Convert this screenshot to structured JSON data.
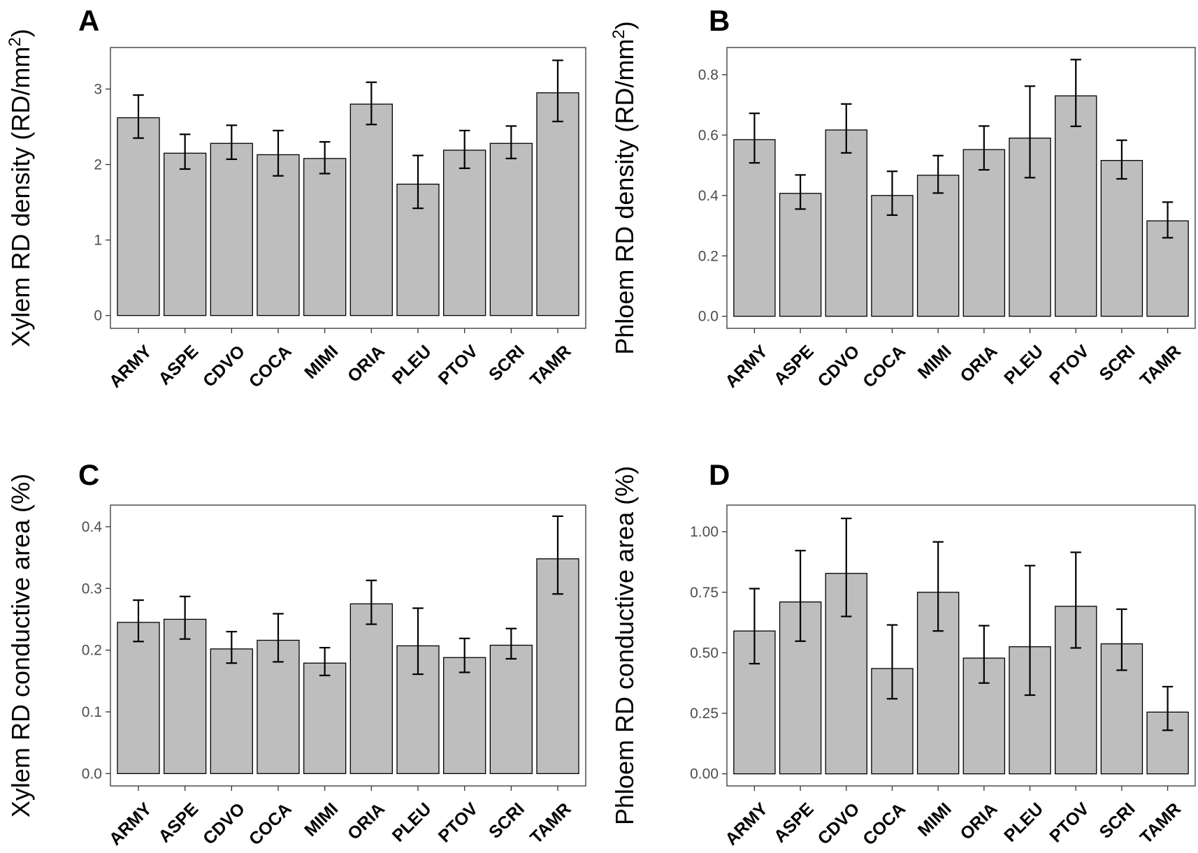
{
  "colors": {
    "bar_fill": "#bebebe",
    "bar_stroke": "#000000",
    "tick_text": "#4d4d4d"
  },
  "chart_data": [
    {
      "panel": "A",
      "type": "bar",
      "ylabel": "Xylem RD density (RD/mm",
      "ylabel_superscript": "2",
      "ylabel_close": ")",
      "categories": [
        "ARMY",
        "ASPE",
        "CDVO",
        "COCA",
        "MIMI",
        "ORIA",
        "PLEU",
        "PTOV",
        "SCRI",
        "TAMR"
      ],
      "values": [
        2.62,
        2.15,
        2.28,
        2.13,
        2.08,
        2.8,
        1.74,
        2.19,
        2.28,
        2.95
      ],
      "err_low": [
        2.35,
        1.94,
        2.07,
        1.85,
        1.88,
        2.53,
        1.42,
        1.95,
        2.08,
        2.57
      ],
      "err_high": [
        2.92,
        2.4,
        2.52,
        2.45,
        2.3,
        3.09,
        2.12,
        2.45,
        2.51,
        3.38
      ],
      "ylim": [
        -0.17,
        3.55
      ],
      "yticks": [
        0,
        1,
        2,
        3
      ],
      "ytick_labels": [
        "0",
        "1",
        "2",
        "3"
      ]
    },
    {
      "panel": "B",
      "type": "bar",
      "ylabel": "Phloem RD density (RD/mm",
      "ylabel_superscript": "2",
      "ylabel_close": ")",
      "categories": [
        "ARMY",
        "ASPE",
        "CDVO",
        "COCA",
        "MIMI",
        "ORIA",
        "PLEU",
        "PTOV",
        "SCRI",
        "TAMR"
      ],
      "values": [
        0.585,
        0.407,
        0.617,
        0.4,
        0.467,
        0.552,
        0.59,
        0.73,
        0.516,
        0.316
      ],
      "err_low": [
        0.508,
        0.355,
        0.541,
        0.335,
        0.408,
        0.485,
        0.459,
        0.629,
        0.455,
        0.26
      ],
      "err_high": [
        0.672,
        0.468,
        0.703,
        0.48,
        0.532,
        0.63,
        0.762,
        0.85,
        0.583,
        0.378
      ],
      "ylim": [
        -0.04,
        0.89
      ],
      "yticks": [
        0.0,
        0.2,
        0.4,
        0.6,
        0.8
      ],
      "ytick_labels": [
        "0.0",
        "0.2",
        "0.4",
        "0.6",
        "0.8"
      ]
    },
    {
      "panel": "C",
      "type": "bar",
      "ylabel": "Xylem RD conductive area (%)",
      "categories": [
        "ARMY",
        "ASPE",
        "CDVO",
        "COCA",
        "MIMI",
        "ORIA",
        "PLEU",
        "PTOV",
        "SCRI",
        "TAMR"
      ],
      "values": [
        0.245,
        0.25,
        0.202,
        0.216,
        0.179,
        0.275,
        0.207,
        0.188,
        0.208,
        0.348
      ],
      "err_low": [
        0.214,
        0.218,
        0.179,
        0.181,
        0.159,
        0.242,
        0.161,
        0.164,
        0.186,
        0.291
      ],
      "err_high": [
        0.281,
        0.287,
        0.23,
        0.259,
        0.204,
        0.313,
        0.268,
        0.219,
        0.235,
        0.417
      ],
      "ylim": [
        -0.02,
        0.435
      ],
      "yticks": [
        0.0,
        0.1,
        0.2,
        0.3,
        0.4
      ],
      "ytick_labels": [
        "0.0",
        "0.1",
        "0.2",
        "0.3",
        "0.4"
      ]
    },
    {
      "panel": "D",
      "type": "bar",
      "ylabel": "Phloem RD conductive area (%)",
      "categories": [
        "ARMY",
        "ASPE",
        "CDVO",
        "COCA",
        "MIMI",
        "ORIA",
        "PLEU",
        "PTOV",
        "SCRI",
        "TAMR"
      ],
      "values": [
        0.59,
        0.71,
        0.828,
        0.435,
        0.75,
        0.478,
        0.525,
        0.692,
        0.537,
        0.255
      ],
      "err_low": [
        0.455,
        0.548,
        0.65,
        0.31,
        0.59,
        0.375,
        0.325,
        0.52,
        0.428,
        0.18
      ],
      "err_high": [
        0.765,
        0.922,
        1.055,
        0.615,
        0.958,
        0.612,
        0.86,
        0.915,
        0.68,
        0.36
      ],
      "ylim": [
        -0.05,
        1.11
      ],
      "yticks": [
        0.0,
        0.25,
        0.5,
        0.75,
        1.0
      ],
      "ytick_labels": [
        "0.00",
        "0.25",
        "0.50",
        "0.75",
        "1.00"
      ]
    }
  ]
}
